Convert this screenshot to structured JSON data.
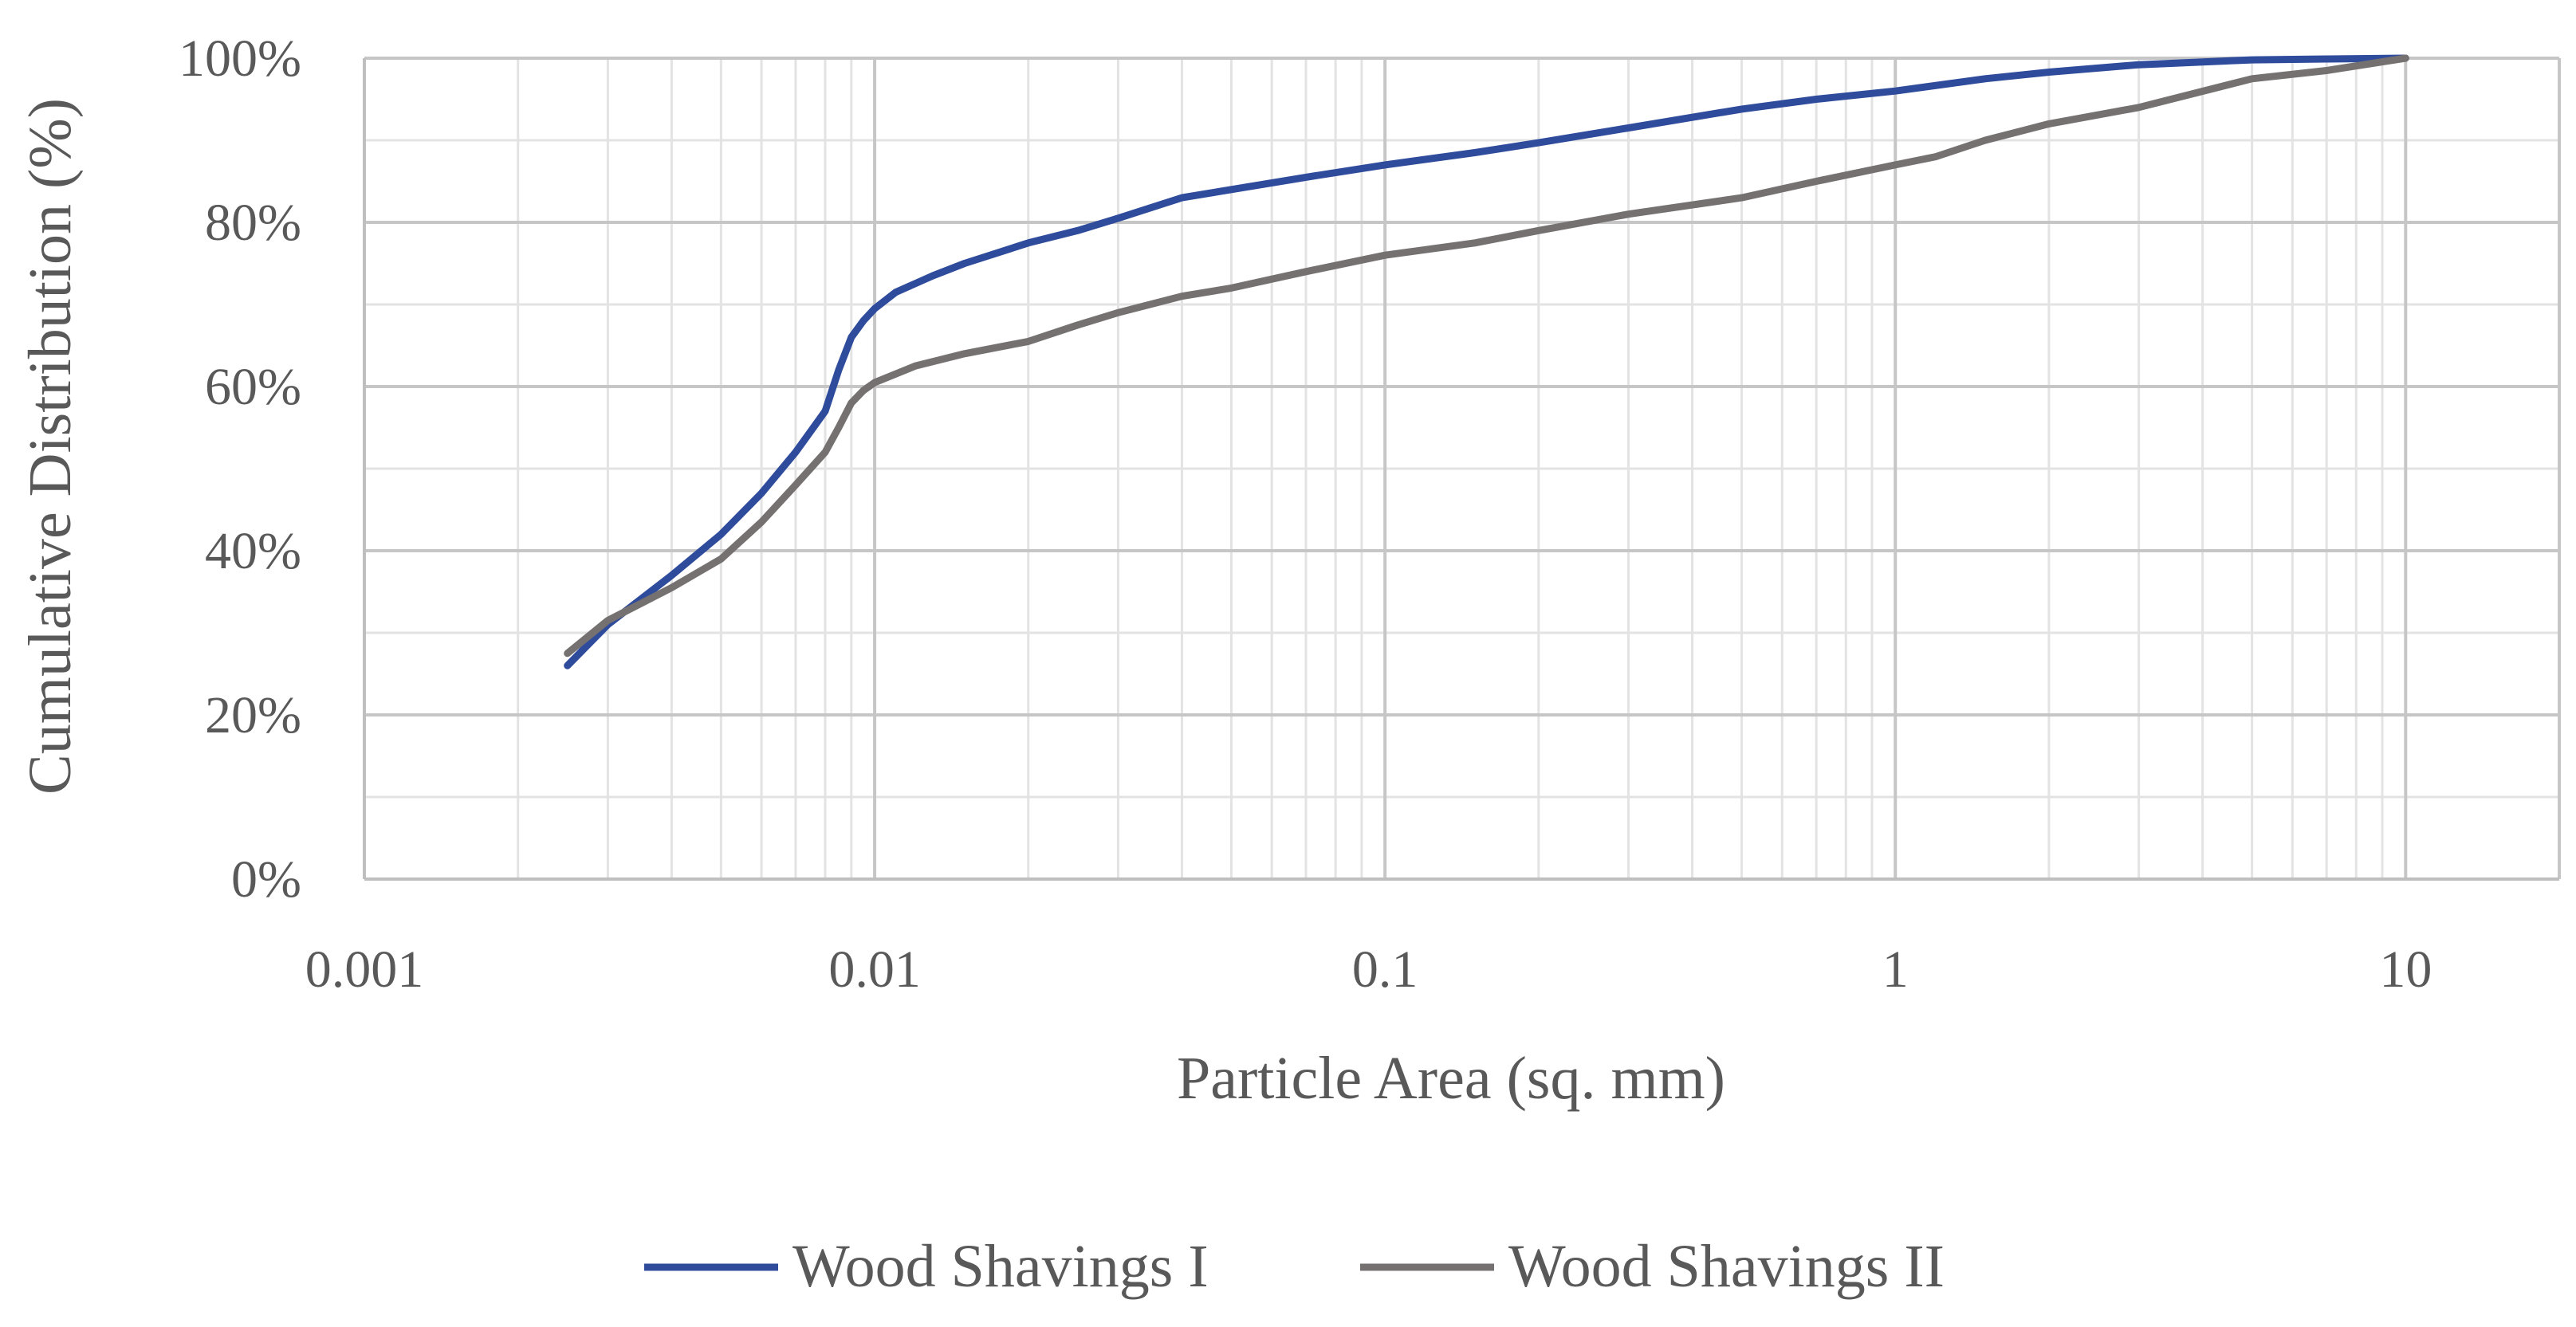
{
  "chart_data": {
    "type": "line",
    "xscale": "log",
    "xlim": [
      0.001,
      20
    ],
    "ylim": [
      0,
      100
    ],
    "xlabel": "Particle Area (sq. mm)",
    "ylabel": "Cumulative Distribution (%)",
    "x_ticks": [
      {
        "value": 0.001,
        "label": "0.001"
      },
      {
        "value": 0.01,
        "label": "0.01"
      },
      {
        "value": 0.1,
        "label": "0.1"
      },
      {
        "value": 1,
        "label": "1"
      },
      {
        "value": 10,
        "label": "10"
      }
    ],
    "y_ticks": [
      {
        "value": 0,
        "label": "0%"
      },
      {
        "value": 20,
        "label": "20%"
      },
      {
        "value": 40,
        "label": "40%"
      },
      {
        "value": 60,
        "label": "60%"
      },
      {
        "value": 80,
        "label": "80%"
      },
      {
        "value": 100,
        "label": "100%"
      }
    ],
    "grid": true,
    "legend_position": "bottom",
    "series": [
      {
        "name": "Wood Shavings I",
        "color": "#2f4b9b",
        "x": [
          0.0025,
          0.003,
          0.004,
          0.005,
          0.006,
          0.007,
          0.008,
          0.0085,
          0.009,
          0.0095,
          0.01,
          0.011,
          0.013,
          0.015,
          0.02,
          0.025,
          0.03,
          0.04,
          0.05,
          0.07,
          0.1,
          0.15,
          0.2,
          0.3,
          0.5,
          0.7,
          1,
          1.5,
          2,
          3,
          5,
          7,
          10
        ],
        "y": [
          26,
          31,
          37,
          42,
          47,
          52,
          57,
          62,
          66,
          68,
          69.5,
          71.5,
          73.5,
          75,
          77.5,
          79,
          80.5,
          83,
          84,
          85.5,
          87,
          88.5,
          89.7,
          91.5,
          93.8,
          95,
          96,
          97.5,
          98.3,
          99.2,
          99.8,
          99.9,
          100
        ]
      },
      {
        "name": "Wood Shavings II",
        "color": "#757171",
        "x": [
          0.0025,
          0.003,
          0.004,
          0.005,
          0.006,
          0.007,
          0.008,
          0.0085,
          0.009,
          0.0095,
          0.01,
          0.012,
          0.015,
          0.02,
          0.025,
          0.03,
          0.04,
          0.05,
          0.07,
          0.1,
          0.15,
          0.2,
          0.3,
          0.5,
          0.7,
          1,
          1.2,
          1.5,
          2,
          3,
          5,
          7,
          10
        ],
        "y": [
          27.5,
          31.5,
          35.5,
          39,
          43.5,
          48,
          52,
          55,
          58,
          59.5,
          60.5,
          62.5,
          64,
          65.5,
          67.5,
          69,
          71,
          72,
          74,
          76,
          77.5,
          79,
          81,
          83,
          85,
          87,
          88,
          90,
          92,
          94,
          97.5,
          98.5,
          100
        ]
      }
    ]
  }
}
